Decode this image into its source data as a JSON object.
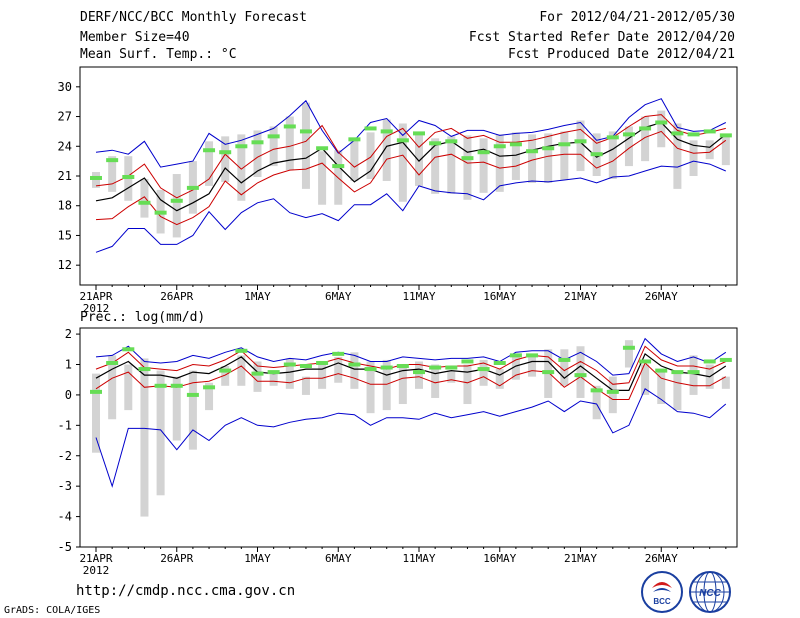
{
  "header": {
    "title": "DERF/NCC/BCC Monthly Forecast",
    "member_size": "Member Size=40",
    "variable": "Mean Surf. Temp.: °C",
    "for_range": "For 2012/04/21-2012/05/30",
    "start_date": "Fcst Started Refer Date 2012/04/20",
    "produced_date": "Fcst Produced Date 2012/04/21"
  },
  "footer": {
    "url": "http://cmdp.ncc.cma.gov.cn",
    "grads": "GrADS: COLA/IGES",
    "logo_bcc_label": "BCC",
    "logo_ncc_label": "NCC"
  },
  "colors": {
    "ensemble_mean": "#000000",
    "spread_inner": "#cc0000",
    "spread_outer": "#0000cc",
    "member_bar": "#d3d3d3",
    "observed_marker": "#66dd55"
  },
  "chart_data": [
    {
      "type": "line",
      "title": "Mean Surf. Temp.: °C",
      "xlabel": "",
      "ylabel": "",
      "ylim": [
        10,
        32
      ],
      "yticks": [
        12,
        15,
        18,
        21,
        24,
        27,
        30
      ],
      "x_tick_labels": [
        "21APR",
        "26APR",
        "1MAY",
        "6MAY",
        "11MAY",
        "16MAY",
        "21MAY",
        "26MAY"
      ],
      "x_tick_days": [
        0,
        5,
        10,
        15,
        20,
        25,
        30,
        35
      ],
      "year_label": "2012",
      "days": 40,
      "series": [
        {
          "name": "mean",
          "values": [
            18.5,
            18.8,
            19.8,
            20.8,
            18.6,
            17.5,
            18.3,
            19.2,
            21.8,
            20.3,
            21.5,
            22.3,
            22.6,
            22.8,
            23.8,
            22.0,
            20.4,
            21.5,
            24.0,
            24.4,
            22.5,
            24.1,
            24.5,
            23.4,
            23.7,
            23.0,
            23.1,
            23.6,
            24.0,
            24.3,
            24.4,
            22.9,
            23.7,
            24.8,
            25.9,
            26.4,
            24.7,
            24.1,
            23.9,
            25.2
          ]
        },
        {
          "name": "upper_inner",
          "values": [
            20.0,
            20.2,
            21.0,
            22.2,
            19.8,
            18.8,
            19.6,
            20.7,
            23.2,
            21.7,
            22.9,
            23.7,
            24.0,
            24.5,
            26.1,
            23.4,
            21.9,
            22.9,
            25.0,
            25.8,
            23.9,
            25.4,
            25.8,
            24.8,
            25.1,
            24.4,
            24.4,
            24.6,
            25.0,
            25.4,
            25.7,
            24.3,
            24.9,
            26.0,
            27.0,
            27.2,
            25.6,
            25.1,
            25.4,
            25.8
          ]
        },
        {
          "name": "lower_inner",
          "values": [
            16.6,
            16.7,
            17.9,
            18.9,
            16.9,
            16.1,
            16.8,
            17.9,
            20.5,
            19.1,
            20.3,
            21.1,
            21.6,
            21.7,
            22.3,
            20.8,
            19.4,
            20.3,
            22.7,
            23.1,
            21.1,
            22.9,
            23.2,
            22.3,
            22.4,
            21.8,
            22.0,
            22.6,
            23.0,
            23.2,
            23.2,
            21.8,
            22.5,
            23.8,
            24.9,
            25.5,
            23.8,
            23.3,
            23.4,
            24.6
          ]
        },
        {
          "name": "upper_outer",
          "values": [
            23.4,
            23.6,
            23.2,
            24.5,
            21.9,
            22.2,
            22.5,
            25.3,
            24.2,
            24.6,
            25.2,
            25.8,
            27.1,
            28.6,
            25.6,
            23.3,
            24.6,
            26.4,
            26.8,
            25.1,
            26.6,
            26.1,
            25.0,
            25.6,
            25.6,
            25.1,
            25.3,
            25.4,
            25.7,
            26.1,
            26.4,
            24.6,
            25.0,
            26.9,
            28.2,
            28.8,
            25.9,
            25.5,
            25.6,
            26.4
          ]
        },
        {
          "name": "lower_outer",
          "values": [
            13.3,
            13.9,
            15.7,
            15.7,
            14.1,
            14.1,
            15.0,
            17.4,
            15.6,
            17.3,
            18.3,
            18.7,
            17.3,
            16.8,
            17.2,
            16.5,
            18.1,
            18.1,
            19.2,
            17.5,
            20.0,
            19.5,
            19.3,
            19.2,
            18.6,
            20.0,
            20.3,
            20.5,
            20.4,
            20.6,
            20.8,
            20.3,
            20.9,
            21.0,
            21.5,
            22.0,
            21.9,
            22.5,
            22.2,
            21.5
          ]
        },
        {
          "name": "observed",
          "values": [
            20.8,
            22.6,
            20.9,
            18.3,
            17.3,
            18.5,
            19.8,
            23.6,
            23.4,
            24.0,
            24.4,
            25.0,
            26.0,
            25.5,
            23.8,
            22.0,
            24.7,
            25.8,
            25.5,
            24.6,
            25.3,
            24.3,
            24.5,
            22.8,
            23.4,
            24.0,
            24.2,
            23.5,
            23.8,
            24.2,
            24.5,
            23.2,
            24.9,
            25.2,
            25.8,
            26.4,
            25.3,
            25.2,
            25.5,
            25.1
          ]
        },
        {
          "name": "member_max",
          "values": [
            21.4,
            23.0,
            23.0,
            20.7,
            19.6,
            21.2,
            22.5,
            24.5,
            25.0,
            25.2,
            25.6,
            26.0,
            27.0,
            28.4,
            23.5,
            23.6,
            24.7,
            25.4,
            26.7,
            26.3,
            25.3,
            24.8,
            25.0,
            25.1,
            24.8,
            25.2,
            25.4,
            25.2,
            25.3,
            25.5,
            26.6,
            25.3,
            25.5,
            26.0,
            27.0,
            27.6,
            26.3,
            24.6,
            24.6,
            25.1
          ]
        },
        {
          "name": "member_min",
          "values": [
            19.8,
            19.4,
            18.5,
            16.8,
            15.2,
            14.8,
            17.2,
            20.0,
            20.4,
            18.5,
            20.9,
            22.0,
            21.6,
            19.7,
            18.1,
            18.1,
            20.5,
            20.7,
            20.5,
            18.4,
            20.0,
            19.2,
            19.2,
            18.6,
            19.3,
            19.4,
            20.6,
            20.3,
            20.3,
            20.6,
            21.5,
            21.0,
            20.7,
            22.0,
            22.5,
            23.9,
            19.7,
            21.0,
            22.7,
            22.1
          ]
        }
      ]
    },
    {
      "type": "line",
      "title": "Prec.: log(mm/d)",
      "xlabel": "",
      "ylabel": "",
      "ylim": [
        -5,
        2.2
      ],
      "yticks": [
        -5,
        -4,
        -3,
        -2,
        -1,
        0,
        1,
        2
      ],
      "x_tick_labels": [
        "21APR",
        "26APR",
        "1MAY",
        "6MAY",
        "11MAY",
        "16MAY",
        "21MAY",
        "26MAY"
      ],
      "x_tick_days": [
        0,
        5,
        10,
        15,
        20,
        25,
        30,
        35
      ],
      "year_label": "2012",
      "days": 40,
      "series": [
        {
          "name": "mean",
          "values": [
            0.55,
            0.85,
            1.1,
            0.65,
            0.65,
            0.55,
            0.75,
            0.7,
            0.95,
            1.25,
            0.75,
            0.7,
            0.75,
            0.85,
            0.85,
            1.05,
            0.85,
            0.85,
            0.65,
            0.8,
            0.85,
            0.7,
            0.8,
            0.75,
            0.85,
            0.65,
            0.95,
            1.1,
            1.1,
            0.55,
            0.95,
            0.55,
            0.15,
            0.15,
            1.35,
            0.95,
            0.75,
            0.7,
            0.6,
            0.95
          ]
        },
        {
          "name": "upper_inner",
          "values": [
            0.85,
            1.05,
            1.4,
            0.9,
            0.85,
            0.8,
            1.0,
            0.95,
            1.15,
            1.45,
            0.95,
            0.9,
            0.95,
            1.0,
            1.05,
            1.2,
            1.05,
            0.95,
            0.85,
            1.0,
            1.0,
            0.9,
            0.95,
            0.95,
            1.05,
            0.85,
            1.15,
            1.3,
            1.25,
            0.8,
            1.1,
            0.8,
            0.35,
            0.4,
            1.6,
            1.15,
            0.95,
            0.95,
            0.85,
            1.1
          ]
        },
        {
          "name": "lower_inner",
          "values": [
            0.2,
            0.55,
            0.75,
            0.25,
            0.3,
            0.25,
            0.4,
            0.45,
            0.65,
            0.95,
            0.45,
            0.45,
            0.4,
            0.55,
            0.55,
            0.7,
            0.55,
            0.35,
            0.35,
            0.55,
            0.6,
            0.4,
            0.5,
            0.4,
            0.6,
            0.3,
            0.65,
            0.8,
            0.75,
            0.25,
            0.6,
            0.2,
            -0.15,
            -0.15,
            1.05,
            0.55,
            0.4,
            0.3,
            0.3,
            0.6
          ]
        },
        {
          "name": "upper_outer",
          "values": [
            1.25,
            1.3,
            1.6,
            1.1,
            1.05,
            1.1,
            1.3,
            1.2,
            1.4,
            1.55,
            1.25,
            1.1,
            1.2,
            1.15,
            1.3,
            1.4,
            1.3,
            1.1,
            1.1,
            1.25,
            1.2,
            1.15,
            1.2,
            1.2,
            1.25,
            1.1,
            1.4,
            1.45,
            1.45,
            1.15,
            1.4,
            1.1,
            0.65,
            0.7,
            1.85,
            1.35,
            1.1,
            1.25,
            1.05,
            1.4
          ]
        },
        {
          "name": "lower_outer",
          "values": [
            -1.4,
            -3.0,
            -1.1,
            -1.1,
            -1.15,
            -1.8,
            -1.15,
            -1.5,
            -1.0,
            -0.75,
            -1.0,
            -1.05,
            -0.9,
            -0.8,
            -0.75,
            -0.6,
            -0.65,
            -1.0,
            -0.75,
            -0.75,
            -0.8,
            -0.6,
            -0.75,
            -0.65,
            -0.55,
            -0.7,
            -0.55,
            -0.4,
            -0.2,
            -0.55,
            -0.2,
            -0.3,
            -1.25,
            -1.0,
            0.2,
            -0.15,
            -0.55,
            -0.6,
            -0.75,
            -0.3
          ]
        },
        {
          "name": "observed",
          "values": [
            0.1,
            1.05,
            1.5,
            0.85,
            0.3,
            0.3,
            0.0,
            0.25,
            0.8,
            1.45,
            0.7,
            0.75,
            1.0,
            0.95,
            1.05,
            1.35,
            1.0,
            0.85,
            0.9,
            0.95,
            0.75,
            0.9,
            0.9,
            1.1,
            0.85,
            1.05,
            1.3,
            1.3,
            0.75,
            1.15,
            0.65,
            0.15,
            0.1,
            1.55,
            1.1,
            0.8,
            0.75,
            0.75,
            1.1,
            1.15
          ]
        },
        {
          "name": "member_max",
          "values": [
            0.7,
            1.3,
            1.0,
            1.2,
            0.8,
            0.6,
            0.8,
            0.4,
            0.95,
            1.3,
            1.1,
            0.8,
            1.2,
            0.6,
            1.1,
            1.25,
            1.4,
            1.1,
            1.15,
            0.9,
            1.1,
            1.0,
            0.8,
            1.0,
            1.15,
            0.85,
            1.3,
            1.35,
            1.5,
            1.5,
            1.6,
            0.3,
            0.6,
            1.8,
            1.0,
            0.8,
            0.8,
            1.3,
            1.0,
            0.6
          ]
        },
        {
          "name": "member_min",
          "values": [
            -1.9,
            -0.8,
            -0.5,
            -4.0,
            -3.3,
            -1.5,
            -1.8,
            -0.5,
            0.3,
            0.3,
            0.1,
            0.3,
            0.2,
            0.0,
            0.2,
            0.4,
            0.2,
            -0.6,
            -0.5,
            -0.3,
            0.2,
            -0.1,
            0.4,
            -0.3,
            0.3,
            0.2,
            0.5,
            0.6,
            -0.1,
            0.3,
            -0.1,
            -0.8,
            -0.6,
            0.9,
            0.0,
            -0.3,
            -0.5,
            0.0,
            0.2,
            0.2
          ]
        }
      ]
    }
  ]
}
